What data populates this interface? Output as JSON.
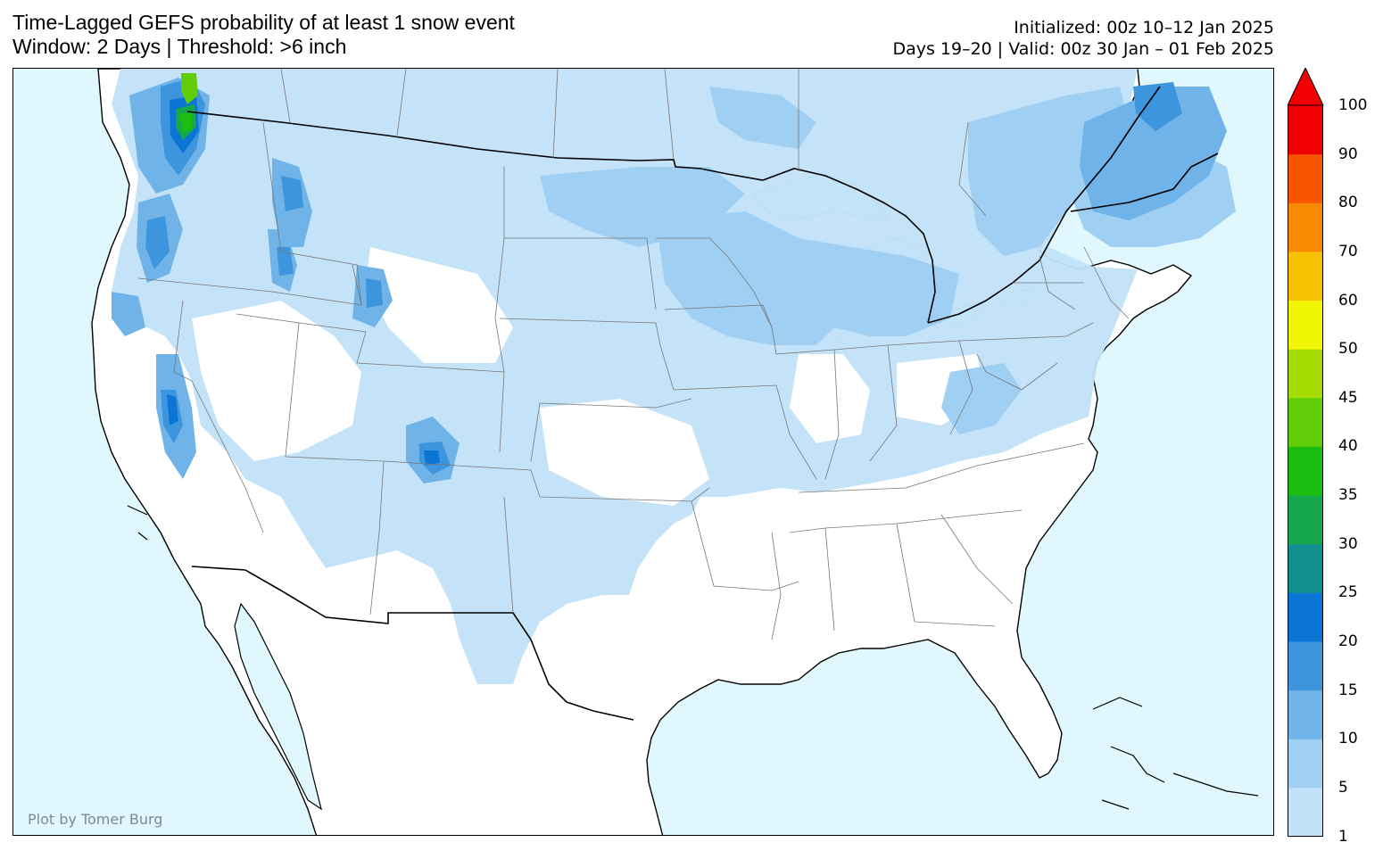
{
  "title": {
    "line1": "Time-Lagged GEFS probability of at least 1 snow event",
    "line2": "Window: 2 Days | Threshold: >6 inch"
  },
  "init": {
    "line1": "Initialized: 00z 10–12 Jan 2025",
    "line2": "Days 19–20 | Valid: 00z 30 Jan – 01 Feb 2025"
  },
  "credit": "Plot by Tomer Burg",
  "colors": {
    "ocean": "#e0f7fe",
    "land": "#ffffff"
  },
  "colorbar": {
    "ticks": [
      "1",
      "5",
      "10",
      "15",
      "20",
      "25",
      "30",
      "35",
      "40",
      "45",
      "50",
      "60",
      "70",
      "80",
      "90",
      "100"
    ],
    "colors": [
      "#c1e2f8",
      "#9fcff2",
      "#6fb3e8",
      "#3c95dd",
      "#0a75d4",
      "#10908f",
      "#18a84c",
      "#1bbd10",
      "#61cd08",
      "#a4dc04",
      "#eff502",
      "#f5c102",
      "#f78a02",
      "#f95500",
      "#f00000"
    ],
    "extend": "max"
  }
}
